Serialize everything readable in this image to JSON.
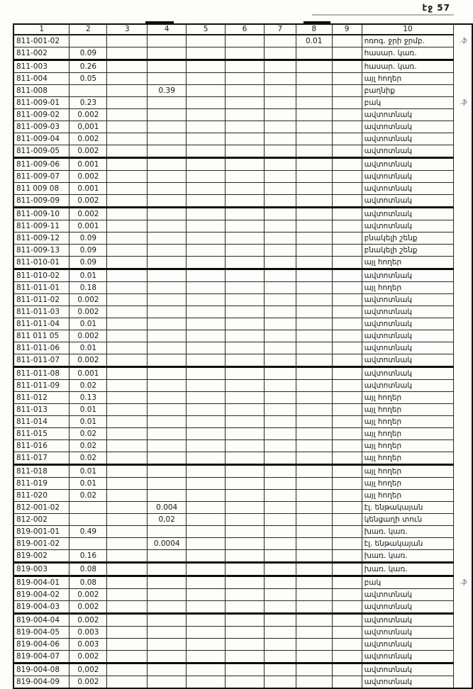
{
  "page": {
    "header_label": "էջ 57"
  },
  "table": {
    "columns": [
      "1",
      "2",
      "3",
      "4",
      "5",
      "6",
      "7",
      "8",
      "9",
      "10"
    ],
    "rows": [
      {
        "cells": [
          "811-001-02",
          "",
          "",
          "",
          "",
          "",
          "",
          "0.01",
          "",
          "ոռոգ. ջրի ջրմբ."
        ],
        "note": ".ֆ"
      },
      {
        "cells": [
          "811-002",
          "0.09",
          "",
          "",
          "",
          "",
          "",
          "",
          "",
          "հասար. կառ."
        ],
        "note": ""
      },
      {
        "cells": [
          "811-003",
          "0.26",
          "",
          "",
          "",
          "",
          "",
          "",
          "",
          "հասար. կառ."
        ],
        "note": ""
      },
      {
        "cells": [
          "811-004",
          "0.05",
          "",
          "",
          "",
          "",
          "",
          "",
          "",
          "այլ հողեր"
        ],
        "note": ""
      },
      {
        "cells": [
          "811-008",
          "",
          "",
          "0.39",
          "",
          "",
          "",
          "",
          "",
          "բաղնիք"
        ],
        "note": ""
      },
      {
        "cells": [
          "811-009-01",
          "0.23",
          "",
          "",
          "",
          "",
          "",
          "",
          "",
          "բակ"
        ],
        "note": ".ֆ"
      },
      {
        "cells": [
          "811-009-02",
          "0.002",
          "",
          "",
          "",
          "",
          "",
          "",
          "",
          "ավտոտնակ"
        ],
        "note": ""
      },
      {
        "cells": [
          "811-009-03",
          "0,001",
          "",
          "",
          "",
          "",
          "",
          "",
          "",
          "ավտոտնակ"
        ],
        "note": ""
      },
      {
        "cells": [
          "811-009-04",
          "0.002",
          "",
          "",
          "",
          "",
          "",
          "",
          "",
          "ավտոտնակ"
        ],
        "note": ""
      },
      {
        "cells": [
          "811-009-05",
          "0.002",
          "",
          "",
          "",
          "",
          "",
          "",
          "",
          "ավտոտնակ"
        ],
        "note": ""
      },
      {
        "cells": [
          "811-009-06",
          "0.001",
          "",
          "",
          "",
          "",
          "",
          "",
          "",
          "ավտոտնակ"
        ],
        "note": ""
      },
      {
        "cells": [
          "811-009-07",
          "0.002",
          "",
          "",
          "",
          "",
          "",
          "",
          "",
          "ավտոտնակ"
        ],
        "note": ""
      },
      {
        "cells": [
          "811 009 08",
          "0.001",
          "",
          "",
          "",
          "",
          "",
          "",
          "",
          "ավտոտնակ"
        ],
        "note": ""
      },
      {
        "cells": [
          "811-009-09",
          "0.002",
          "",
          "",
          "",
          "",
          "",
          "",
          "",
          "ավտոտնակ"
        ],
        "note": ""
      },
      {
        "cells": [
          "811-009-10",
          "0.002",
          "",
          "",
          "",
          "",
          "",
          "",
          "",
          "ավտոտնակ"
        ],
        "note": ""
      },
      {
        "cells": [
          "811-009-11",
          "0.001",
          "",
          "",
          "",
          "",
          "",
          "",
          "",
          "ավտոտնակ"
        ],
        "note": ""
      },
      {
        "cells": [
          "811-009-12",
          "0.09",
          "",
          "",
          "",
          "",
          "",
          "",
          "",
          "բնակելի շենք"
        ],
        "note": ""
      },
      {
        "cells": [
          "811-009-13",
          "0.09",
          "",
          "",
          "",
          "",
          "",
          "",
          "",
          "բնակելի շենք"
        ],
        "note": ""
      },
      {
        "cells": [
          "811-010-01",
          "0.09",
          "",
          "",
          "",
          "",
          "",
          "",
          "",
          "այլ հողեր"
        ],
        "note": ""
      },
      {
        "cells": [
          "811-010-02",
          "0.01",
          "",
          "",
          "",
          "",
          "",
          "",
          "",
          "ավտոտնակ"
        ],
        "note": ""
      },
      {
        "cells": [
          "811-011-01",
          "0.18",
          "",
          "",
          "",
          "",
          "",
          "",
          "",
          "այլ հողեր"
        ],
        "note": ""
      },
      {
        "cells": [
          "811-011-02",
          "0.002",
          "",
          "",
          "",
          "",
          "",
          "",
          "",
          "ավտոտնակ"
        ],
        "note": ""
      },
      {
        "cells": [
          "811-011-03",
          "0.002",
          "",
          "",
          "",
          "",
          "",
          "",
          "",
          "ավտոտնակ"
        ],
        "note": ""
      },
      {
        "cells": [
          "811-011-04",
          "0.01",
          "",
          "",
          "",
          "",
          "",
          "",
          "",
          "ավտոտնակ"
        ],
        "note": ""
      },
      {
        "cells": [
          "811 011 05",
          "0.002",
          "",
          "",
          "",
          "",
          "",
          "",
          "",
          "ավտոտնակ"
        ],
        "note": ""
      },
      {
        "cells": [
          "811-011-06",
          "0.01",
          "",
          "",
          "",
          "",
          "",
          "",
          "",
          "ավտոտնակ"
        ],
        "note": ""
      },
      {
        "cells": [
          "811-011-07",
          "0.002",
          "",
          "",
          "",
          "",
          "",
          "",
          "",
          "ավտոտնակ"
        ],
        "note": ""
      },
      {
        "cells": [
          "811-011-08",
          "0.001",
          "",
          "",
          "",
          "",
          "",
          "",
          "",
          "ավտոտնակ"
        ],
        "note": ""
      },
      {
        "cells": [
          "811-011-09",
          "0.02",
          "",
          "",
          "",
          "",
          "",
          "",
          "",
          "ավտոտնակ"
        ],
        "note": ""
      },
      {
        "cells": [
          "811-012",
          "0.13",
          "",
          "",
          "",
          "",
          "",
          "",
          "",
          "այլ հողեր"
        ],
        "note": ""
      },
      {
        "cells": [
          "811-013",
          "0.01",
          "",
          "",
          "",
          "",
          "",
          "",
          "",
          "այլ հողեր"
        ],
        "note": ""
      },
      {
        "cells": [
          "811-014",
          "0.01",
          "",
          "",
          "",
          "",
          "",
          "",
          "",
          "այլ հողեր"
        ],
        "note": ""
      },
      {
        "cells": [
          "811-015",
          "0.02",
          "",
          "",
          "",
          "",
          "",
          "",
          "",
          "այլ հողեր"
        ],
        "note": ""
      },
      {
        "cells": [
          "811-016",
          "0.02",
          "",
          "",
          "",
          "",
          "",
          "",
          "",
          "այլ հողեր"
        ],
        "note": ""
      },
      {
        "cells": [
          "811-017",
          "0.02",
          "",
          "",
          "",
          "",
          "",
          "",
          "",
          "այլ հողեր"
        ],
        "note": ""
      },
      {
        "cells": [
          "811-018",
          "0.01",
          "",
          "",
          "",
          "",
          "",
          "",
          "",
          "այլ հողեր"
        ],
        "note": ""
      },
      {
        "cells": [
          "811-019",
          "0.01",
          "",
          "",
          "",
          "",
          "",
          "",
          "",
          "այլ հողեր"
        ],
        "note": ""
      },
      {
        "cells": [
          "811-020",
          "0.02",
          "",
          "",
          "",
          "",
          "",
          "",
          "",
          "այլ հողեր"
        ],
        "note": ""
      },
      {
        "cells": [
          "812-001-02",
          "",
          "",
          "0.004",
          "",
          "",
          "",
          "",
          "",
          "էլ. ենթակայան"
        ],
        "note": ""
      },
      {
        "cells": [
          "812-002",
          "",
          "",
          "0,02",
          "",
          "",
          "",
          "",
          "",
          "կենցաղի տուն"
        ],
        "note": ""
      },
      {
        "cells": [
          "819-001-01",
          "0.49",
          "",
          "",
          "",
          "",
          "",
          "",
          "",
          "խառ. կառ."
        ],
        "note": ""
      },
      {
        "cells": [
          "819-001-02",
          "",
          "",
          "0.0004",
          "",
          "",
          "",
          "",
          "",
          "էլ. ենթակայան"
        ],
        "note": ""
      },
      {
        "cells": [
          "819-002",
          "0.16",
          "",
          "",
          "",
          "",
          "",
          "",
          "",
          "խառ. կառ."
        ],
        "note": ""
      },
      {
        "cells": [
          "819-003",
          "0.08",
          "",
          "",
          "",
          "",
          "",
          "",
          "",
          "խառ. կառ."
        ],
        "note": ""
      },
      {
        "cells": [
          "819-004-01",
          "0.08",
          "",
          "",
          "",
          "",
          "",
          "",
          "",
          "բակ"
        ],
        "note": ".ֆ"
      },
      {
        "cells": [
          "819-004-02",
          "0.002",
          "",
          "",
          "",
          "",
          "",
          "",
          "",
          "ավտոտնակ"
        ],
        "note": ""
      },
      {
        "cells": [
          "819-004-03",
          "0.002",
          "",
          "",
          "",
          "",
          "",
          "",
          "",
          "ավտոտնակ"
        ],
        "note": ""
      },
      {
        "cells": [
          "819-004-04",
          "0.002",
          "",
          "",
          "",
          "",
          "",
          "",
          "",
          "ավտոտնակ"
        ],
        "note": ""
      },
      {
        "cells": [
          "819-004-05",
          "0.003",
          "",
          "",
          "",
          "",
          "",
          "",
          "",
          "ավտոտնակ"
        ],
        "note": ""
      },
      {
        "cells": [
          "819-004-06",
          "0.003",
          "",
          "",
          "",
          "",
          "",
          "",
          "",
          "ավտոտնակ"
        ],
        "note": ""
      },
      {
        "cells": [
          "819-004-07",
          "0.002",
          "",
          "",
          "",
          "",
          "",
          "",
          "",
          "ավտոտնակ"
        ],
        "note": ""
      },
      {
        "cells": [
          "819-004-08",
          "0,002",
          "",
          "",
          "",
          "",
          "",
          "",
          "",
          "ավտոտնակ"
        ],
        "note": ""
      },
      {
        "cells": [
          "819-004-09",
          "0.002",
          "",
          "",
          "",
          "",
          "",
          "",
          "",
          "ավտոտնակ"
        ],
        "note": ""
      }
    ]
  }
}
